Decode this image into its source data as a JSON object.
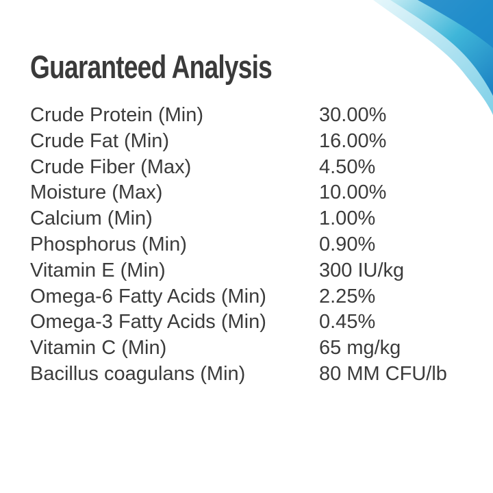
{
  "header": {
    "title": "Guaranteed Analysis"
  },
  "table": {
    "rows": [
      [
        "Crude Protein (Min)",
        "30.00%"
      ],
      [
        "Crude Fat (Min)",
        "16.00%"
      ],
      [
        "Crude Fiber (Max)",
        "4.50%"
      ],
      [
        "Moisture (Max)",
        "10.00%"
      ],
      [
        "Calcium (Min)",
        "1.00%"
      ],
      [
        "Phosphorus (Min)",
        "0.90%"
      ],
      [
        "Vitamin E (Min)",
        "300 IU/kg"
      ],
      [
        "Omega-6 Fatty Acids (Min)",
        "2.25%"
      ],
      [
        "Omega-3 Fatty Acids (Min)",
        "0.45%"
      ],
      [
        "Vitamin C (Min)",
        "65 mg/kg"
      ],
      [
        "Bacillus coagulans (Min)",
        "80 MM CFU/lb"
      ]
    ]
  }
}
